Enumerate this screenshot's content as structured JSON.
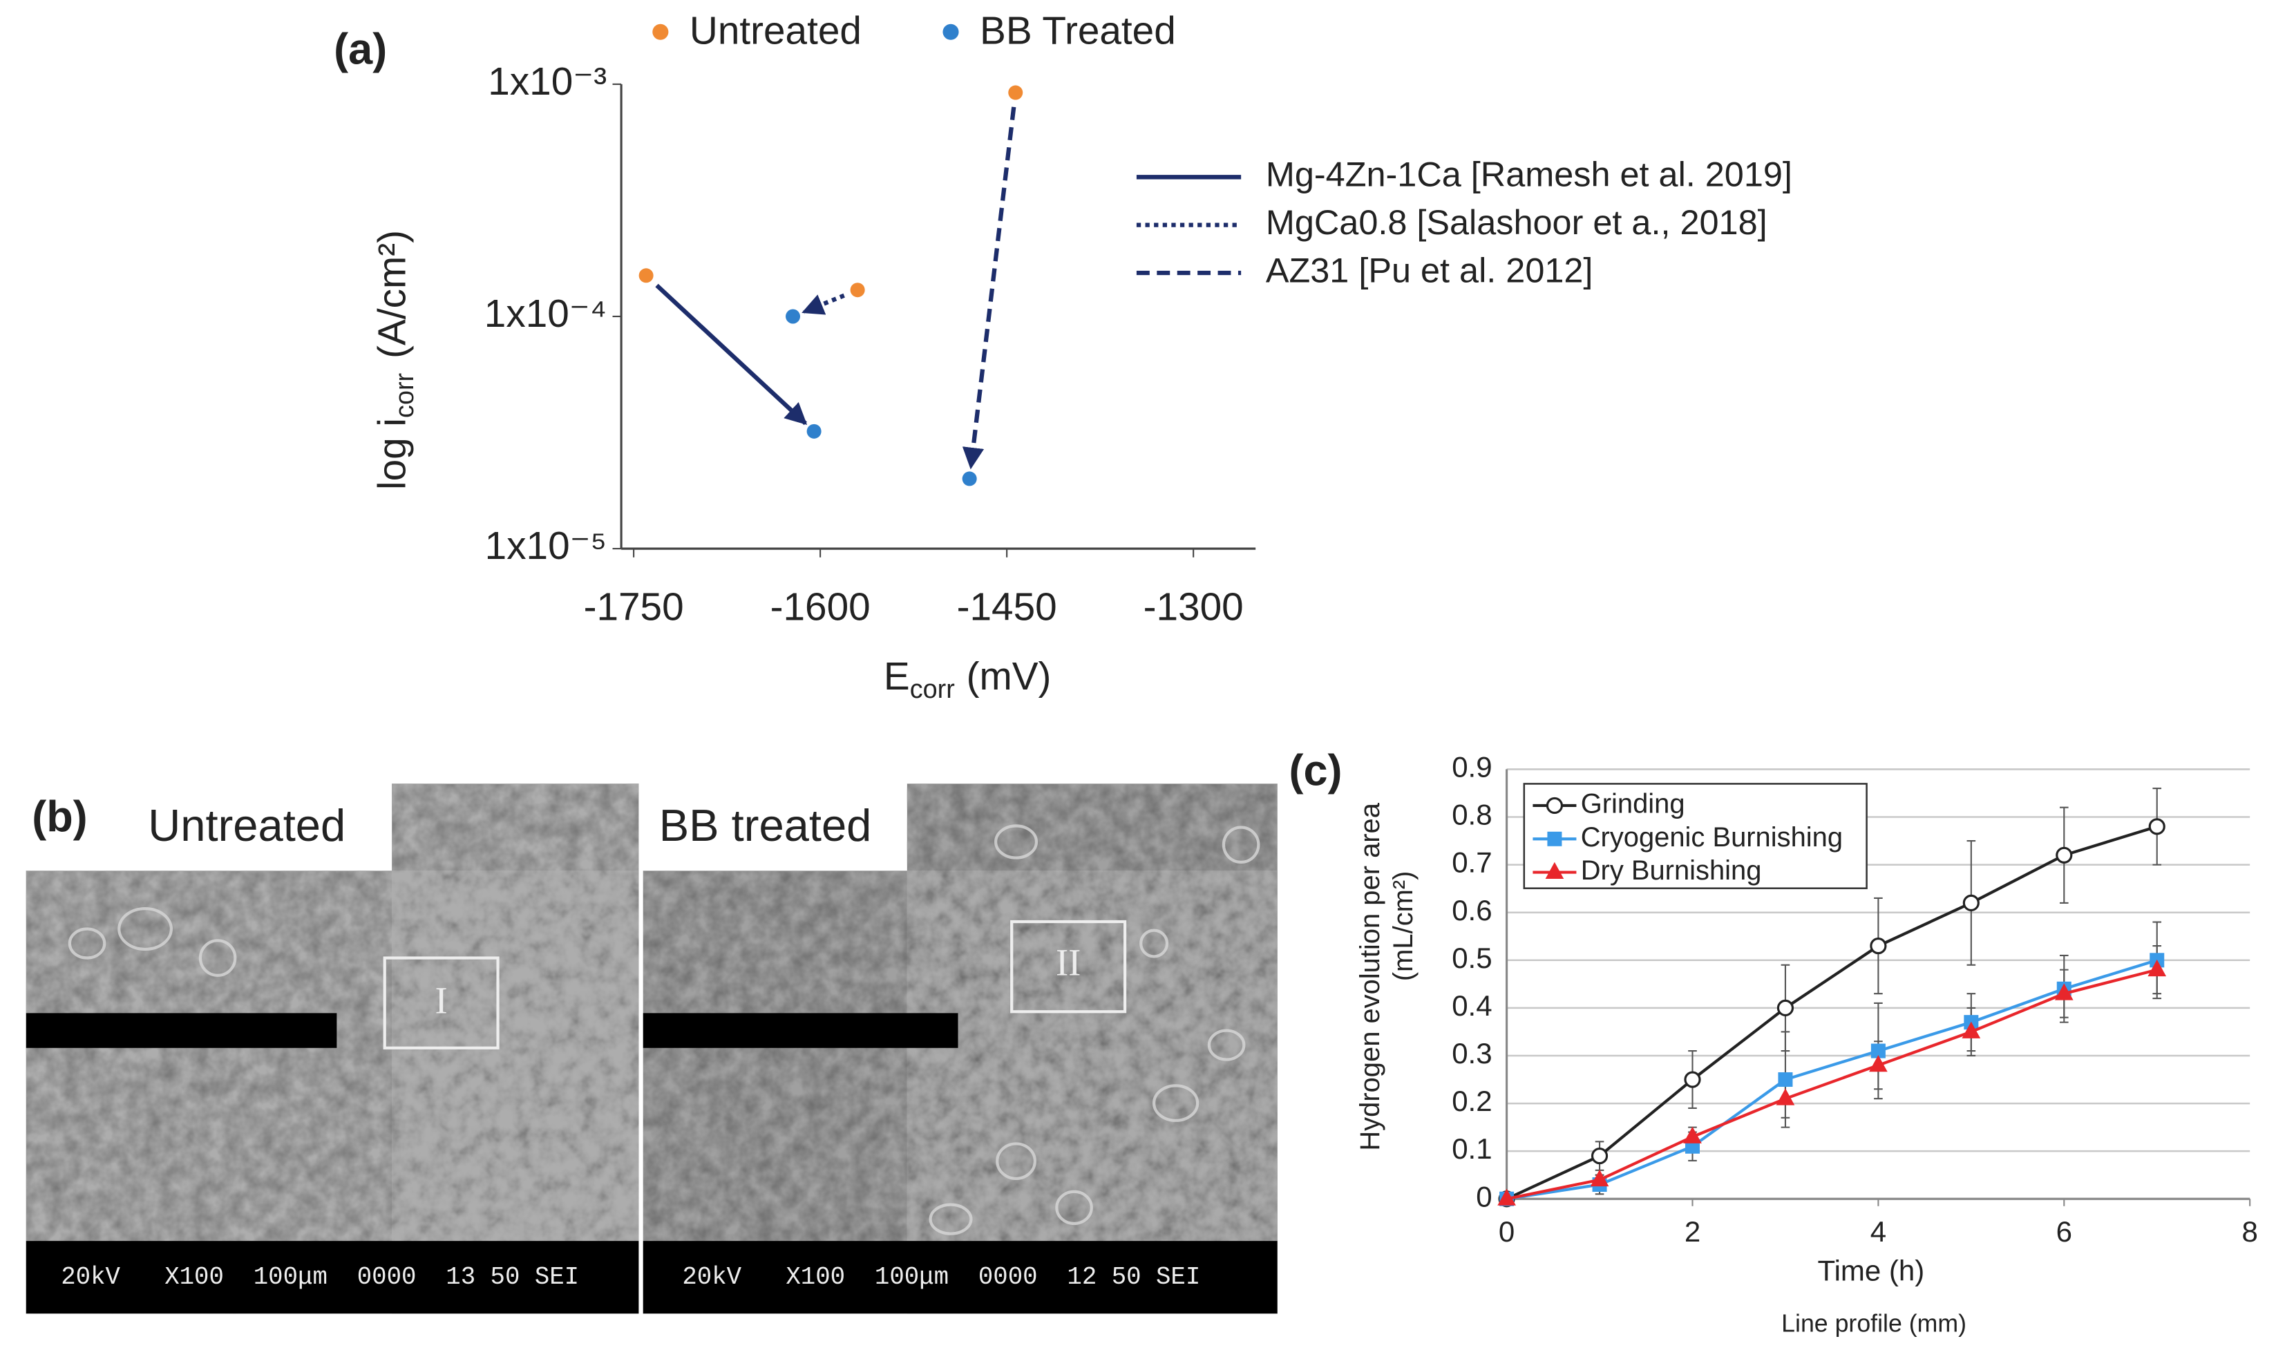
{
  "chart_data": [
    {
      "type": "scatter",
      "panel": "(a)",
      "x_label": {
        "main": "E",
        "sub": "corr",
        "unit": "(mV)"
      },
      "y_label": {
        "main": "log i",
        "sub": "corr",
        "unit": "(A/cm²)"
      },
      "xlim": [
        -1760,
        -1250
      ],
      "xticks": [
        -1750,
        -1600,
        -1450,
        -1300
      ],
      "ylim": [
        1e-05,
        0.001
      ],
      "log_y": true,
      "yticks": [
        {
          "value": 0.001,
          "label": "1x10⁻³"
        },
        {
          "value": 0.0001,
          "label": "1x10⁻⁴"
        },
        {
          "value": 1e-05,
          "label": "1x10⁻⁵"
        }
      ],
      "series": [
        {
          "name": "Untreated",
          "color": "#f08a33",
          "x": [
            -1740,
            -1570,
            -1443
          ],
          "values": [
            0.00015,
            0.00013,
            0.00092
          ]
        },
        {
          "name": "BB Treated",
          "color": "#2f80cc",
          "x": [
            -1605,
            -1622,
            -1480
          ],
          "values": [
            3.2e-05,
            0.0001,
            2e-05
          ]
        }
      ],
      "arrows": [
        {
          "name": "Mg-4Zn-1Ca [Ramesh et al. 2019]",
          "dash": "solid"
        },
        {
          "name": "MgCa0.8 [Salashoor et a., 2018]",
          "dash": "dotted"
        },
        {
          "name": "AZ31 [Pu et al. 2012]",
          "dash": "dashed"
        }
      ],
      "arrow_color": "#1d2d6b"
    },
    {
      "type": "line",
      "panel": "(c)",
      "x_label": "Time (h)",
      "x_label_2": "Line profile (mm)",
      "y_label": "Hydrogen evolution per area",
      "y_label_2": "(mL/cm²)",
      "x": [
        0,
        1,
        2,
        3,
        4,
        5,
        6,
        7
      ],
      "xlim": [
        0,
        8
      ],
      "xticks": [
        0,
        2,
        4,
        6,
        8
      ],
      "ylim": [
        0,
        0.9
      ],
      "yticks": [
        0,
        0.1,
        0.2,
        0.3,
        0.4,
        0.5,
        0.6,
        0.7,
        0.8,
        0.9
      ],
      "grid": true,
      "series": [
        {
          "name": "Grinding",
          "color": "#222222",
          "marker": "circle",
          "values": [
            0,
            0.09,
            0.25,
            0.4,
            0.53,
            0.62,
            0.72,
            0.78
          ],
          "errors": [
            0,
            0.03,
            0.06,
            0.09,
            0.1,
            0.13,
            0.1,
            0.08
          ]
        },
        {
          "name": "Cryogenic Burnishing",
          "color": "#3a9ae8",
          "marker": "square",
          "values": [
            0,
            0.03,
            0.11,
            0.25,
            0.31,
            0.37,
            0.44,
            0.5
          ],
          "errors": [
            0,
            0.02,
            0.03,
            0.1,
            0.1,
            0.06,
            0.07,
            0.08
          ]
        },
        {
          "name": "Dry Burnishing",
          "color": "#e8262b",
          "marker": "triangle",
          "values": [
            0,
            0.04,
            0.13,
            0.21,
            0.28,
            0.35,
            0.43,
            0.48
          ],
          "errors": [
            0,
            0.01,
            0.02,
            0.04,
            0.05,
            0.05,
            0.05,
            0.05
          ]
        }
      ]
    }
  ],
  "panel_b": {
    "label": "(b)",
    "left_title": "Untreated",
    "right_title": "BB treated",
    "left_box": "I",
    "right_box": "II",
    "left_bar": "20kV   X100  100μm  0000  13 50 SEI",
    "right_bar": "20kV   X100  100μm  0000  12 50 SEI"
  }
}
